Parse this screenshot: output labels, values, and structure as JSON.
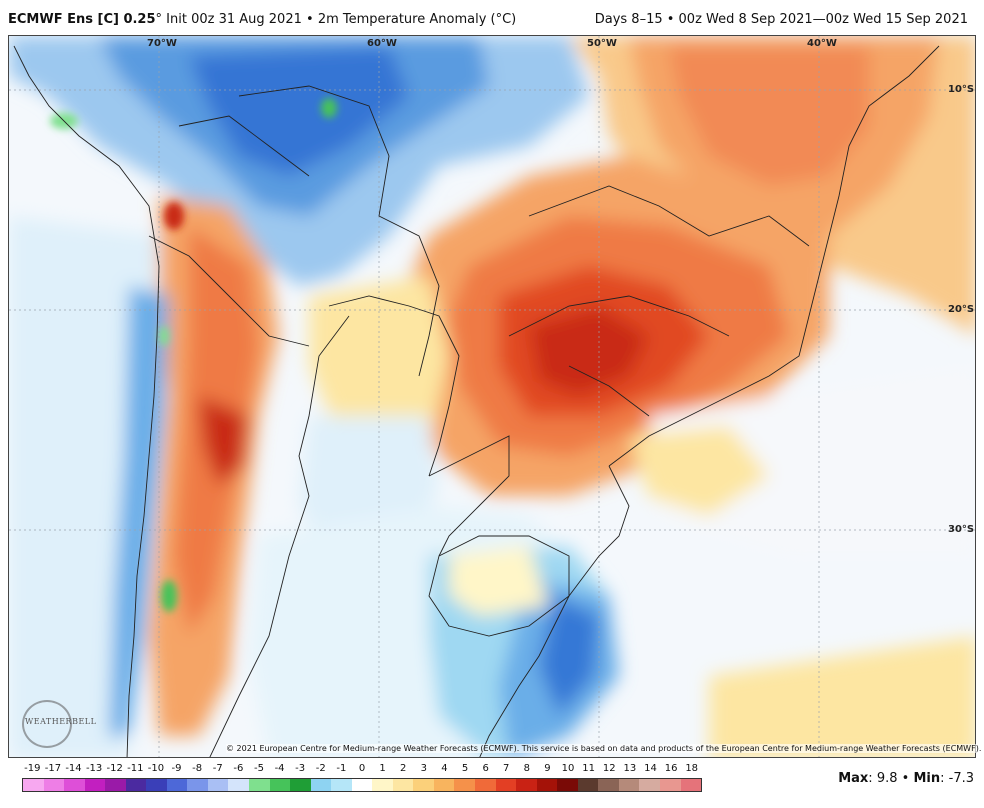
{
  "header": {
    "model_label": "ECMWF Ens [C] 0.25",
    "degree_symbol": "°",
    "init_text": "Init 00z 31 Aug 2021",
    "bullet": "•",
    "field_text": "2m Temperature Anomaly (°C)",
    "valid_text": "Days 8–15  •  00z Wed 8 Sep 2021—00z Wed 15 Sep 2021"
  },
  "map": {
    "longitude_labels": [
      "70°W",
      "60°W",
      "50°W",
      "40°W"
    ],
    "latitude_labels": [
      "10°S",
      "20°S",
      "30°S"
    ],
    "copyright": "© 2021 European Centre for Medium-range Weather Forecasts (ECMWF). This service is based on data and products of the European Centre for Medium-range Weather Forecasts (ECMWF).",
    "logo_text": "WEATHERBELL"
  },
  "legend": {
    "ticks": [
      "-19",
      "-17",
      "-14",
      "-13",
      "-12",
      "-11",
      "-10",
      "-9",
      "-8",
      "-7",
      "-6",
      "-5",
      "-4",
      "-3",
      "-2",
      "-1",
      "0",
      "1",
      "2",
      "3",
      "4",
      "5",
      "6",
      "7",
      "8",
      "9",
      "10",
      "11",
      "12",
      "13",
      "14",
      "16",
      "18"
    ],
    "colors": [
      "#f7a8f0",
      "#ee7ee6",
      "#de4fd8",
      "#c21fc0",
      "#9a1aa8",
      "#4b2aa0",
      "#3a3fb8",
      "#4d68d8",
      "#7a95ea",
      "#a9bff4",
      "#d4e4fb",
      "#7fe08e",
      "#46c35a",
      "#1f9e36",
      "#8ed3f2",
      "#b5e6f8",
      "#ffffff",
      "#fff6c8",
      "#fde6a2",
      "#fbd07a",
      "#f8b45e",
      "#f5914a",
      "#f06a39",
      "#e33f24",
      "#c92214",
      "#a41208",
      "#7a0a06",
      "#5b3a2e",
      "#8a6456",
      "#b58a7a",
      "#d6aba0",
      "#e89790",
      "#e5737a"
    ]
  },
  "stats": {
    "max_label": "Max",
    "max_value": "9.8",
    "separator": "•",
    "min_label": "Min",
    "min_value": "-7.3"
  }
}
